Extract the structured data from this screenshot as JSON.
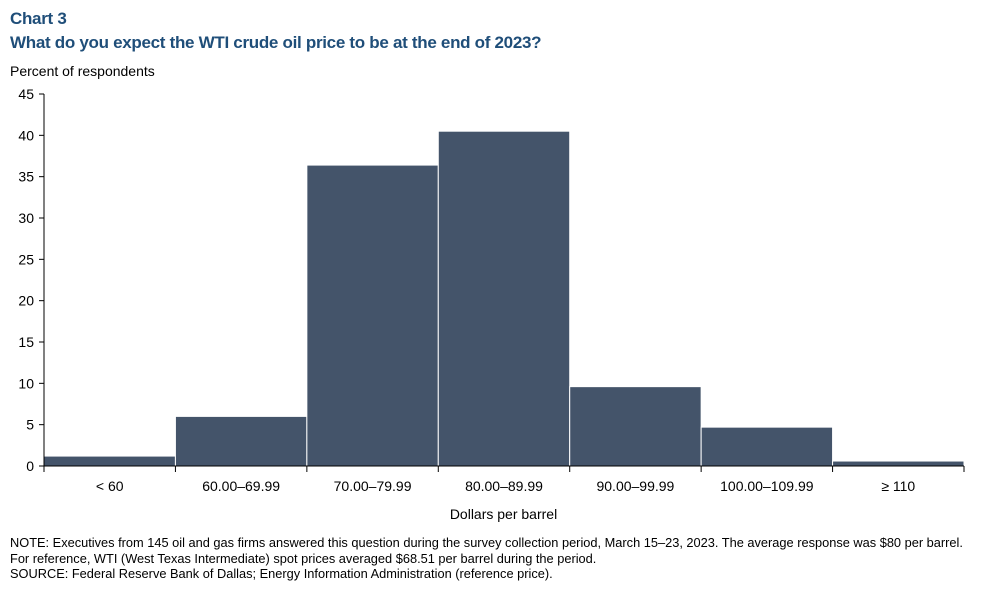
{
  "header": {
    "chart_number": "Chart 3",
    "title": "What do you expect the WTI crude oil price to be at the end of 2023?"
  },
  "chart_data": {
    "type": "bar",
    "title": "What do you expect the WTI crude oil price to be at the end of 2023?",
    "ylabel": "Percent of respondents",
    "xlabel": "Dollars per barrel",
    "categories": [
      "< 60",
      "60.00–69.99",
      "70.00–79.99",
      "80.00–89.99",
      "90.00–99.99",
      "100.00–109.99",
      "≥ 110"
    ],
    "values": [
      1.2,
      6.0,
      36.4,
      40.5,
      9.6,
      4.7,
      0.6
    ],
    "ylim": [
      0,
      45
    ],
    "yticks": [
      0,
      5,
      10,
      15,
      20,
      25,
      30,
      35,
      40,
      45
    ],
    "grid": false,
    "bar_color": "#44546a"
  },
  "footer": {
    "note": "NOTE: Executives from 145 oil and gas firms answered this question during the survey collection period, March 15–23, 2023. The average response was $80 per barrel. For reference, WTI (West Texas Intermediate) spot prices averaged $68.51 per barrel during the period.",
    "source": "SOURCE: Federal Reserve Bank of Dallas; Energy Information Administration (reference price)."
  }
}
